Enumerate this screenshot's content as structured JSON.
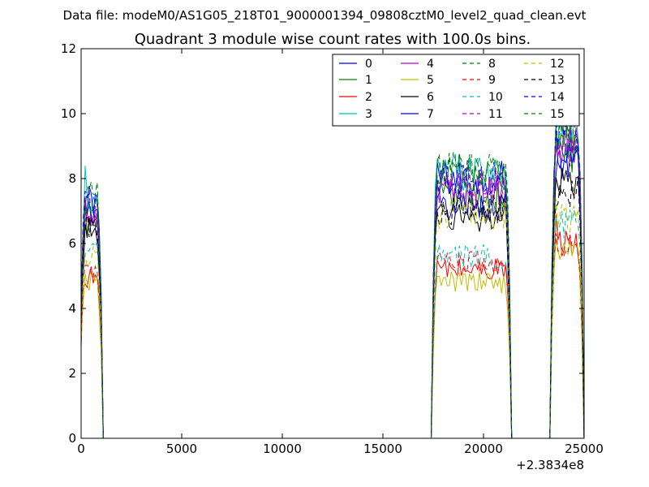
{
  "chart_data": {
    "type": "line",
    "suptitle": "Data file: modeM0/AS1G05_218T01_9000001394_09808cztM0_level2_quad_clean.evt",
    "title": "Quadrant 3 module wise count rates with 100.0s bins.",
    "xlabel": "",
    "ylabel": "",
    "x_offset_label": "+2.3834e8",
    "xlim": [
      0,
      25000
    ],
    "ylim": [
      0,
      12
    ],
    "x_ticks": [
      "0",
      "5000",
      "10000",
      "15000",
      "20000",
      "25000"
    ],
    "y_ticks": [
      "0",
      "2",
      "4",
      "6",
      "8",
      "10",
      "12"
    ],
    "grid": false,
    "legend_position": "top-right",
    "active_segments": [
      [
        0,
        1000
      ],
      [
        17500,
        21300
      ],
      [
        23400,
        24900
      ]
    ],
    "series": [
      {
        "name": "0",
        "color": "#0000ff",
        "dash": "solid",
        "levels": [
          7.0,
          8.0,
          8.5
        ]
      },
      {
        "name": "1",
        "color": "#008000",
        "dash": "solid",
        "levels": [
          6.5,
          7.4,
          8.8
        ]
      },
      {
        "name": "2",
        "color": "#ff0000",
        "dash": "solid",
        "levels": [
          5.0,
          5.2,
          6.0
        ]
      },
      {
        "name": "3",
        "color": "#00bfbf",
        "dash": "solid",
        "levels": [
          7.2,
          8.2,
          9.6
        ]
      },
      {
        "name": "4",
        "color": "#bf00bf",
        "dash": "solid",
        "levels": [
          6.8,
          7.6,
          9.2
        ]
      },
      {
        "name": "5",
        "color": "#bfbf00",
        "dash": "solid",
        "levels": [
          4.8,
          4.8,
          5.8
        ]
      },
      {
        "name": "6",
        "color": "#000000",
        "dash": "solid",
        "levels": [
          6.4,
          6.8,
          7.8
        ]
      },
      {
        "name": "7",
        "color": "#0000ff",
        "dash": "solid",
        "levels": [
          7.4,
          7.2,
          8.6
        ]
      },
      {
        "name": "8",
        "color": "#008000",
        "dash": "dashed",
        "levels": [
          7.4,
          8.3,
          9.2
        ]
      },
      {
        "name": "9",
        "color": "#ff0000",
        "dash": "dashed",
        "levels": [
          5.2,
          5.4,
          5.9
        ]
      },
      {
        "name": "10",
        "color": "#00bfbf",
        "dash": "dashed",
        "levels": [
          5.8,
          5.6,
          6.6
        ]
      },
      {
        "name": "11",
        "color": "#bf00bf",
        "dash": "dashed",
        "levels": [
          7.0,
          7.8,
          9.0
        ]
      },
      {
        "name": "12",
        "color": "#bfbf00",
        "dash": "dashed",
        "levels": [
          5.6,
          6.9,
          6.8
        ]
      },
      {
        "name": "13",
        "color": "#000000",
        "dash": "dashed",
        "levels": [
          6.6,
          7.0,
          7.6
        ]
      },
      {
        "name": "14",
        "color": "#0000ff",
        "dash": "dashed",
        "levels": [
          7.2,
          8.0,
          9.4
        ]
      },
      {
        "name": "15",
        "color": "#008000",
        "dash": "dashed",
        "levels": [
          7.0,
          8.2,
          9.5
        ]
      }
    ]
  }
}
